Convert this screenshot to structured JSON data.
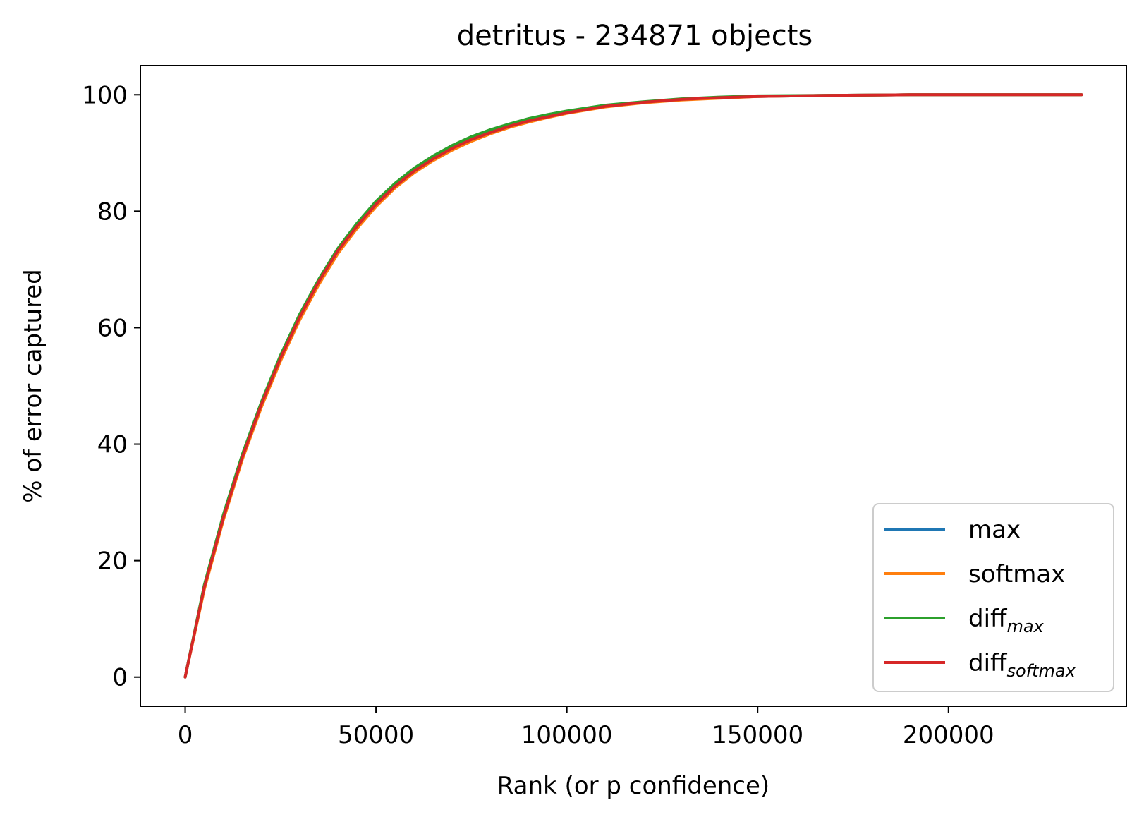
{
  "chart_data": {
    "type": "line",
    "title": "detritus - 234871 objects",
    "xlabel": "Rank (or p confidence)",
    "ylabel": "% of error captured",
    "xlim": [
      -11743.55,
      246614.55
    ],
    "ylim": [
      -5,
      105
    ],
    "xticks": [
      0,
      50000,
      100000,
      150000,
      200000
    ],
    "xtick_labels": [
      "0",
      "50000",
      "100000",
      "150000",
      "200000"
    ],
    "yticks": [
      0,
      20,
      40,
      60,
      80,
      100
    ],
    "ytick_labels": [
      "0",
      "20",
      "40",
      "60",
      "80",
      "100"
    ],
    "grid": false,
    "legend_position": "lower-right",
    "series": [
      {
        "name": "max",
        "name_base": "max",
        "name_sub": "",
        "color": "#1f77b4",
        "x": [
          0,
          5000,
          10000,
          15000,
          20000,
          25000,
          30000,
          35000,
          40000,
          45000,
          50000,
          55000,
          60000,
          65000,
          70000,
          75000,
          80000,
          85000,
          90000,
          95000,
          100000,
          110000,
          120000,
          130000,
          140000,
          150000,
          170000,
          190000,
          210000,
          234871
        ],
        "y": [
          0,
          15.5,
          27.5,
          38.0,
          47.0,
          55.0,
          62.0,
          68.0,
          73.3,
          77.5,
          81.3,
          84.4,
          87.0,
          89.1,
          90.9,
          92.4,
          93.6,
          94.7,
          95.6,
          96.3,
          97.0,
          98.0,
          98.7,
          99.2,
          99.5,
          99.7,
          99.9,
          100.0,
          100.0,
          100.0
        ]
      },
      {
        "name": "softmax",
        "name_base": "softmax",
        "name_sub": "",
        "color": "#ff7f0e",
        "x": [
          0,
          5000,
          10000,
          15000,
          20000,
          25000,
          30000,
          35000,
          40000,
          45000,
          50000,
          55000,
          60000,
          65000,
          70000,
          75000,
          80000,
          85000,
          90000,
          95000,
          100000,
          110000,
          120000,
          130000,
          140000,
          150000,
          170000,
          190000,
          210000,
          234871
        ],
        "y": [
          0,
          15.0,
          27.0,
          37.4,
          46.4,
          54.3,
          61.3,
          67.4,
          72.7,
          77.0,
          80.8,
          84.0,
          86.6,
          88.7,
          90.5,
          92.0,
          93.3,
          94.4,
          95.3,
          96.1,
          96.8,
          97.9,
          98.6,
          99.1,
          99.4,
          99.7,
          99.9,
          100.0,
          100.0,
          100.0
        ]
      },
      {
        "name": "diff_max",
        "name_base": "diff",
        "name_sub": "max",
        "color": "#2ca02c",
        "x": [
          0,
          5000,
          10000,
          15000,
          20000,
          25000,
          30000,
          35000,
          40000,
          45000,
          50000,
          55000,
          60000,
          65000,
          70000,
          75000,
          80000,
          85000,
          90000,
          95000,
          100000,
          110000,
          120000,
          130000,
          140000,
          150000,
          170000,
          190000,
          210000,
          234871
        ],
        "y": [
          0,
          15.8,
          27.9,
          38.3,
          47.3,
          55.3,
          62.3,
          68.3,
          73.6,
          77.9,
          81.7,
          84.8,
          87.4,
          89.5,
          91.3,
          92.8,
          94.0,
          95.0,
          95.9,
          96.6,
          97.2,
          98.2,
          98.8,
          99.3,
          99.6,
          99.8,
          99.9,
          100.0,
          100.0,
          100.0
        ]
      },
      {
        "name": "diff_softmax",
        "name_base": "diff",
        "name_sub": "softmax",
        "color": "#d62728",
        "x": [
          0,
          5000,
          10000,
          15000,
          20000,
          25000,
          30000,
          35000,
          40000,
          45000,
          50000,
          55000,
          60000,
          65000,
          70000,
          75000,
          80000,
          85000,
          90000,
          95000,
          100000,
          110000,
          120000,
          130000,
          140000,
          150000,
          170000,
          190000,
          210000,
          234871
        ],
        "y": [
          0,
          15.4,
          27.4,
          37.8,
          46.9,
          54.8,
          61.8,
          67.9,
          73.2,
          77.4,
          81.2,
          84.3,
          86.9,
          89.0,
          90.8,
          92.3,
          93.5,
          94.6,
          95.5,
          96.2,
          96.9,
          98.0,
          98.7,
          99.2,
          99.5,
          99.7,
          99.9,
          100.0,
          100.0,
          100.0
        ]
      }
    ]
  }
}
